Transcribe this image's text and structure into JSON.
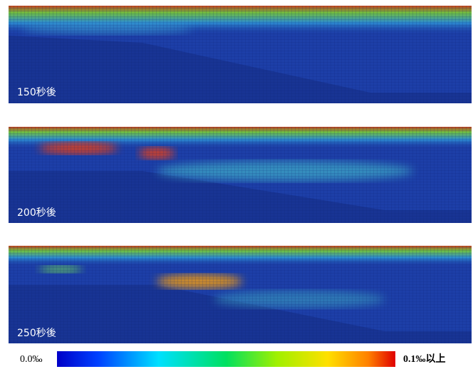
{
  "panels": [
    {
      "label": "150秒後"
    },
    {
      "label": "200秒後"
    },
    {
      "label": "250秒後"
    }
  ],
  "colorbar": {
    "min_label": "0.0‰",
    "max_label": "0.1‰以上"
  }
}
